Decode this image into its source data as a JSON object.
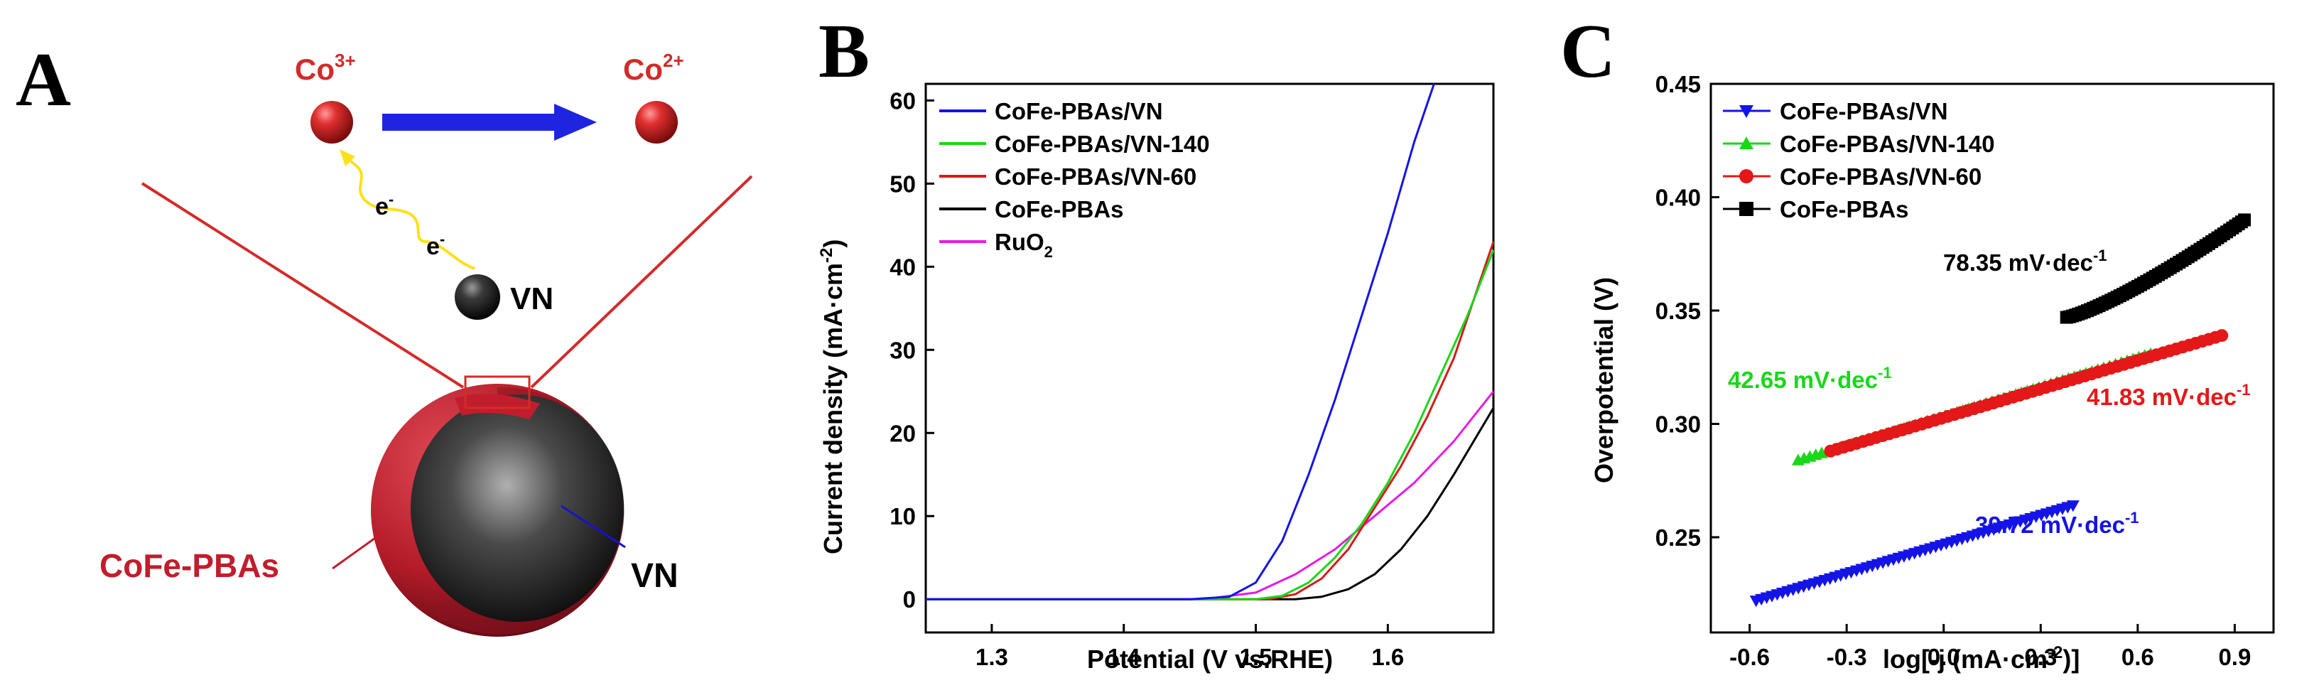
{
  "figure": {
    "panel_labels": [
      "A",
      "B",
      "C"
    ]
  },
  "diagram": {
    "ion_left": {
      "base": "Co",
      "sup": "3+"
    },
    "ion_right": {
      "base": "Co",
      "sup": "2+"
    },
    "electron": {
      "base": "e",
      "sup": "-"
    },
    "vn_label": "VN",
    "shell_label": "CoFe-PBAs",
    "core_label": "VN",
    "colors": {
      "ion": "#d42a2a",
      "arrow": "#1f24e0",
      "electron_path": "#ffe01a",
      "shell": "#c21d2c",
      "outline": "#c21d2c"
    }
  },
  "chart_data": [
    {
      "type": "line",
      "panel": "B",
      "title": "",
      "xlabel": "Potential (V vs.RHE)",
      "ylabel": {
        "base": "Current density (mA·cm",
        "sup": "-2",
        "end": ")"
      },
      "xlim": [
        1.25,
        1.68
      ],
      "ylim": [
        -4,
        62
      ],
      "xticks": [
        1.3,
        1.4,
        1.5,
        1.6
      ],
      "xtick_labels": [
        "1.3",
        "1.4",
        "1.5",
        "1.6"
      ],
      "yticks": [
        0,
        10,
        20,
        30,
        40,
        50,
        60
      ],
      "ytick_labels": [
        "0",
        "10",
        "20",
        "30",
        "40",
        "50",
        "60"
      ],
      "legend_position": "top-left",
      "series": [
        {
          "name": "CoFe-PBAs/VN",
          "color": "#1414e6",
          "x": [
            1.25,
            1.45,
            1.48,
            1.5,
            1.52,
            1.54,
            1.56,
            1.58,
            1.6,
            1.62,
            1.635
          ],
          "y": [
            0,
            0,
            0.3,
            2,
            7,
            15,
            24,
            34,
            44,
            55,
            62
          ]
        },
        {
          "name": "CoFe-PBAs/VN-140",
          "color": "#18d818",
          "x": [
            1.25,
            1.5,
            1.52,
            1.54,
            1.56,
            1.58,
            1.6,
            1.62,
            1.64,
            1.66,
            1.68
          ],
          "y": [
            0,
            0,
            0.4,
            2,
            5,
            9,
            14,
            20,
            27,
            34,
            42
          ]
        },
        {
          "name": "CoFe-PBAs/VN-60",
          "color": "#d61a1a",
          "x": [
            1.25,
            1.51,
            1.53,
            1.55,
            1.57,
            1.59,
            1.61,
            1.63,
            1.65,
            1.68
          ],
          "y": [
            0,
            0,
            0.6,
            2.5,
            6,
            11,
            16,
            22,
            29,
            43
          ]
        },
        {
          "name": "CoFe-PBAs",
          "color": "#000000",
          "x": [
            1.25,
            1.53,
            1.55,
            1.57,
            1.59,
            1.61,
            1.63,
            1.65,
            1.68
          ],
          "y": [
            0,
            0,
            0.3,
            1.2,
            3,
            6,
            10,
            15,
            23
          ]
        },
        {
          "name": "RuO",
          "name_sub": "2",
          "color": "#e61ae6",
          "x": [
            1.25,
            1.46,
            1.5,
            1.53,
            1.56,
            1.59,
            1.62,
            1.65,
            1.68
          ],
          "y": [
            0,
            0,
            0.8,
            3,
            6,
            10,
            14,
            19,
            25
          ]
        }
      ]
    },
    {
      "type": "scatter",
      "panel": "C",
      "title": "",
      "xlabel": {
        "base": "log[-j (mA·cm",
        "sup": "-2",
        "end": ")]"
      },
      "ylabel": "Overpotential (V)",
      "xlim": [
        -0.72,
        1.02
      ],
      "ylim": [
        0.208,
        0.45
      ],
      "xticks": [
        -0.6,
        -0.3,
        0.0,
        0.3,
        0.6,
        0.9
      ],
      "xtick_labels": [
        "-0.6",
        "-0.3",
        "0.0",
        "0.3",
        "0.6",
        "0.9"
      ],
      "yticks": [
        0.25,
        0.3,
        0.35,
        0.4,
        0.45
      ],
      "ytick_labels": [
        "0.25",
        "0.30",
        "0.35",
        "0.40",
        "0.45"
      ],
      "legend_position": "top-left",
      "series": [
        {
          "name": "CoFe-PBAs/VN",
          "color": "#1414e6",
          "marker": "triangle-down",
          "x_start": -0.58,
          "x_end": 0.4,
          "y_start": 0.222,
          "y_end": 0.264,
          "slope_label": "39.72 mV·dec",
          "slope_sup": "-1"
        },
        {
          "name": "CoFe-PBAs/VN-140",
          "color": "#18d818",
          "marker": "triangle-up",
          "x_start": -0.45,
          "x_end": 0.64,
          "y_start": 0.284,
          "y_end": 0.331,
          "slope_label": "42.65 mV·dec",
          "slope_sup": "-1"
        },
        {
          "name": "CoFe-PBAs/VN-60",
          "color": "#e41818",
          "marker": "circle",
          "x_start": -0.35,
          "x_end": 0.86,
          "y_start": 0.288,
          "y_end": 0.339,
          "slope_label": "41.83 mV·dec",
          "slope_sup": "-1"
        },
        {
          "name": "CoFe-PBAs",
          "color": "#000000",
          "marker": "square",
          "x_start": 0.38,
          "x_end": 0.93,
          "y_start": 0.347,
          "y_end": 0.39,
          "slope_label": "78.35 mV·dec",
          "slope_sup": "-1"
        }
      ]
    }
  ]
}
